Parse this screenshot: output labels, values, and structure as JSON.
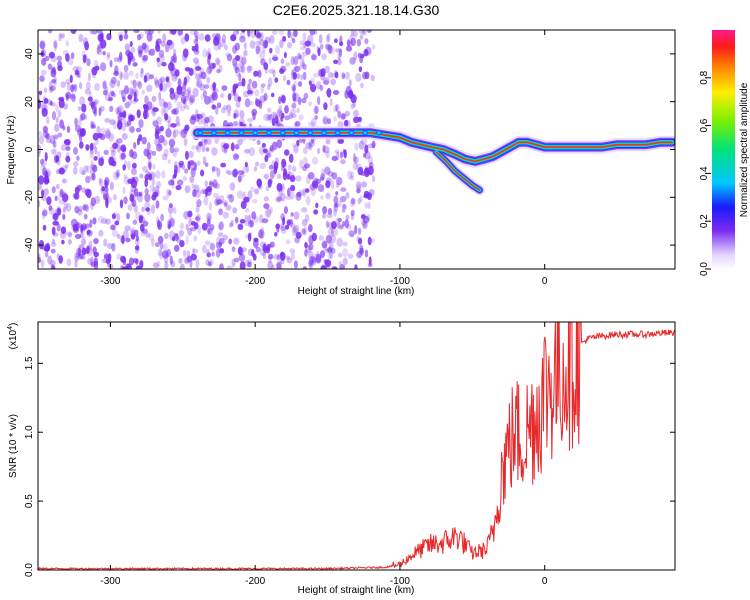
{
  "title": "C2E6.2025.321.18.14.G30",
  "colors": {
    "speckle": "#7a2cf0",
    "ridge_core": "#ff2d1a",
    "snr_line": "#e8282a",
    "axis": "#000000"
  },
  "chart_data": [
    {
      "type": "heatmap",
      "title": "C2E6.2025.321.18.14.G30",
      "xlabel": "Height of straight line (km)",
      "ylabel": "Frequency (Hz)",
      "xlim": [
        -350,
        90
      ],
      "ylim": [
        -50,
        50
      ],
      "xticks": [
        -300,
        -200,
        -100,
        0
      ],
      "xtick_labels": [
        "-300",
        "-200",
        "-100",
        "0"
      ],
      "yticks": [
        -40,
        -20,
        0,
        20,
        40
      ],
      "ytick_labels": [
        "-40",
        "-20",
        "0",
        "20",
        "40"
      ],
      "noise_region_x": [
        -350,
        -118
      ],
      "ridge": {
        "x": [
          -240,
          -225,
          -210,
          -195,
          -180,
          -165,
          -150,
          -135,
          -120,
          -110,
          -100,
          -92,
          -85,
          -78,
          -70,
          -62,
          -55,
          -48,
          -42,
          -36,
          -30,
          -24,
          -18,
          -12,
          -6,
          0,
          10,
          20,
          30,
          40,
          50,
          60,
          70,
          80,
          88
        ],
        "y": [
          7,
          7,
          7,
          7,
          7,
          7,
          7,
          7,
          7,
          6,
          5,
          3,
          2,
          1,
          0,
          -2,
          -4,
          -5,
          -4,
          -3,
          -1,
          1,
          3,
          3,
          2,
          1,
          1,
          1,
          1,
          1,
          2,
          2,
          2,
          3,
          3
        ]
      },
      "branch": {
        "x": [
          -75,
          -68,
          -62,
          -56,
          -50,
          -45
        ],
        "y": [
          -1,
          -5,
          -9,
          -12,
          -15,
          -17
        ]
      },
      "colorbar": {
        "label": "Normalized spectral amplitude",
        "range": [
          0.0,
          1.0
        ],
        "ticks": [
          0.0,
          0.2,
          0.4,
          0.6,
          0.8
        ],
        "tick_labels": [
          "0.0",
          "0.2",
          "0.4",
          "0.6",
          "0.8"
        ]
      }
    },
    {
      "type": "line",
      "xlabel": "Height of straight line (km)",
      "ylabel": "SNR (10 * v/v)",
      "scale_label_prefix": "(x10",
      "scale_label_exp": "4",
      "scale_label_suffix": ")",
      "xlim": [
        -350,
        90
      ],
      "ylim": [
        0,
        1.8
      ],
      "xticks": [
        -300,
        -200,
        -100,
        0
      ],
      "xtick_labels": [
        "-300",
        "-200",
        "-100",
        "0"
      ],
      "yticks": [
        0.0,
        0.5,
        1.0,
        1.5
      ],
      "ytick_labels": [
        "0.0",
        "0.5",
        "1.0",
        "1.5"
      ],
      "series": [
        {
          "name": "SNR",
          "x": [
            -350,
            -300,
            -250,
            -200,
            -150,
            -110,
            -100,
            -90,
            -80,
            -70,
            -60,
            -50,
            -40,
            -35,
            -30,
            -25,
            -20,
            -15,
            -10,
            -5,
            0,
            10,
            20,
            30,
            40,
            50,
            60,
            70,
            80,
            90
          ],
          "y": [
            0.01,
            0.01,
            0.01,
            0.01,
            0.01,
            0.02,
            0.04,
            0.12,
            0.18,
            0.2,
            0.25,
            0.12,
            0.15,
            0.3,
            0.7,
            0.9,
            1.0,
            0.95,
            1.05,
            1.15,
            1.3,
            1.45,
            1.6,
            1.68,
            1.7,
            1.71,
            1.71,
            1.71,
            1.72,
            1.72
          ]
        }
      ]
    }
  ]
}
